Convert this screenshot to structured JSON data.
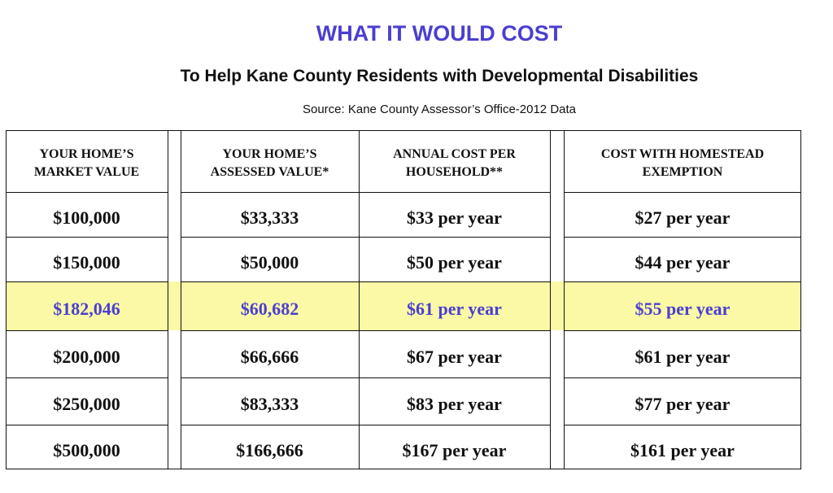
{
  "title": "WHAT IT WOULD COST",
  "subtitle": "To Help Kane County Residents with Developmental Disabilities",
  "source": "Source: Kane County Assessor’s Office-2012 Data",
  "highlight_color": "#fbf9a6",
  "accent_color": "#4a3fd0",
  "table": {
    "headers": [
      "YOUR HOME’S\nMARKET VALUE",
      "YOUR HOME’S\nASSESSED VALUE*",
      "ANNUAL COST PER\nHOUSEHOLD**",
      "COST WITH HOMESTEAD\nEXEMPTION"
    ],
    "rows": [
      [
        "$100,000",
        "$33,333",
        "$33 per year",
        "$27 per year"
      ],
      [
        "$150,000",
        "$50,000",
        "$50 per year",
        "$44 per year"
      ],
      [
        "$182,046",
        "$60,682",
        "$61 per year",
        "$55 per year"
      ],
      [
        "$200,000",
        "$66,666",
        "$67 per year",
        "$61 per year"
      ],
      [
        "$250,000",
        "$83,333",
        "$83 per year",
        "$77 per year"
      ],
      [
        "$500,000",
        "$166,666",
        "$167 per year",
        "$161 per year"
      ]
    ],
    "highlighted_row": 2
  }
}
